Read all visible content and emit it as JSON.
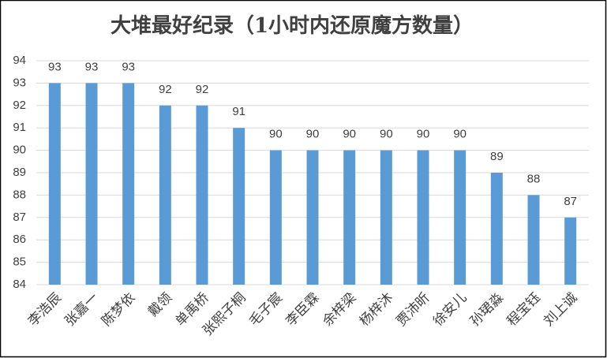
{
  "chart_data": {
    "type": "bar",
    "title": "大堆最好纪录（1小时内还原魔方数量）",
    "categories": [
      "李浩辰",
      "张嘉一",
      "陈梦依",
      "戴领",
      "单禹桥",
      "张熙子桐",
      "毛子宸",
      "李臣霖",
      "余梓梁",
      "杨梓沐",
      "贾沛昕",
      "徐安儿",
      "孙珺淼",
      "程宝钰",
      "刘上诚"
    ],
    "values": [
      93,
      93,
      93,
      92,
      92,
      91,
      90,
      90,
      90,
      90,
      90,
      90,
      89,
      88,
      87
    ],
    "color": "#5b9bd5",
    "ylim": [
      84,
      94
    ],
    "yticks": [
      84,
      85,
      86,
      87,
      88,
      89,
      90,
      91,
      92,
      93,
      94
    ],
    "grid": true
  }
}
